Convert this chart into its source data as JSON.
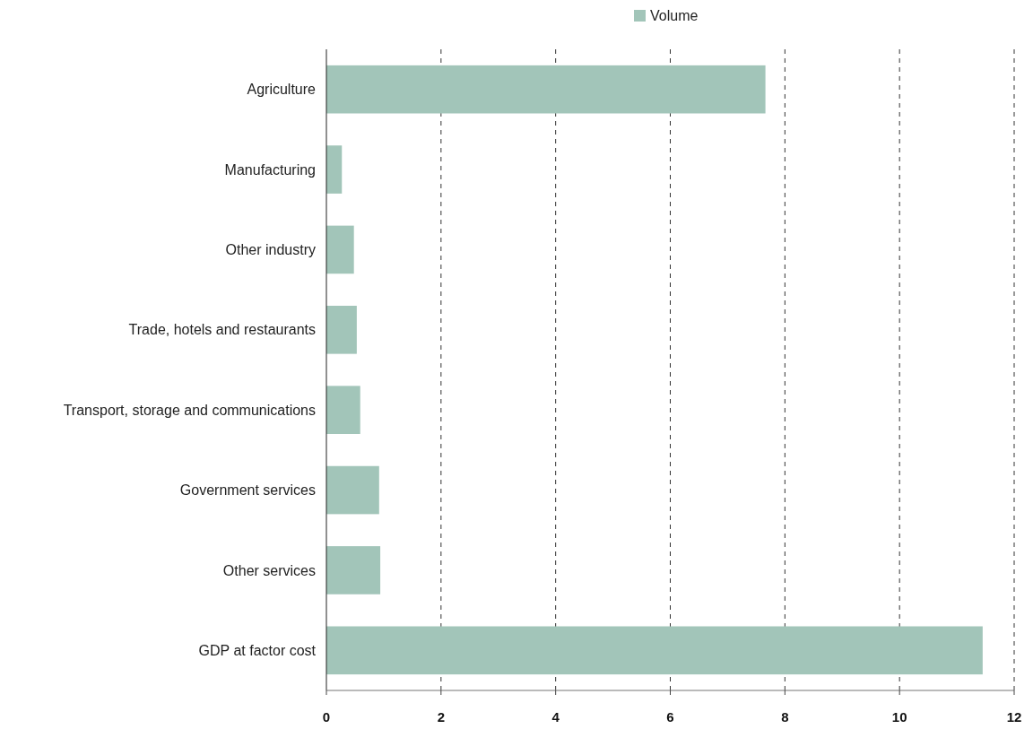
{
  "chart_data": {
    "type": "bar",
    "orientation": "horizontal",
    "categories": [
      "Agriculture",
      "Manufacturing",
      "Other industry",
      "Trade, hotels and restaurants",
      "Transport, storage and communications",
      "Government services",
      "Other services",
      "GDP at factor cost"
    ],
    "series": [
      {
        "name": "Volume",
        "color": "#a2c5b9",
        "values": [
          7.66,
          0.27,
          0.48,
          0.53,
          0.59,
          0.92,
          0.94,
          11.45
        ]
      }
    ],
    "xlim": [
      0,
      12
    ],
    "xticks": [
      0,
      2,
      4,
      6,
      8,
      10,
      12
    ],
    "grid": "x",
    "legend": "top"
  }
}
